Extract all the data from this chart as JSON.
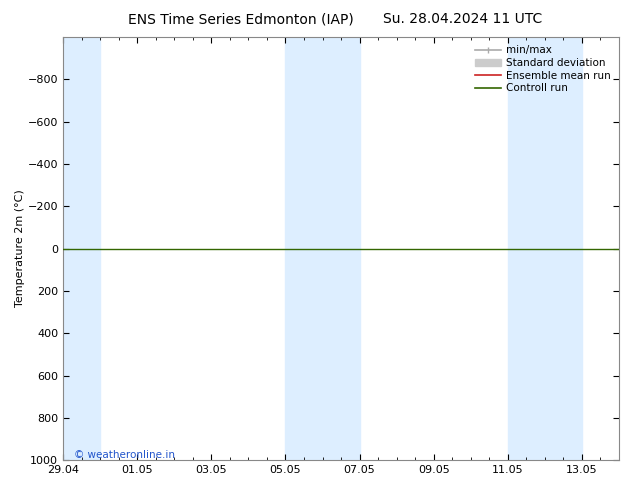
{
  "title": "ENS Time Series Edmonton (IAP)",
  "subtitle": "Su. 28.04.2024 11 UTC",
  "ylabel": "Temperature 2m (°C)",
  "ylim": [
    -1000,
    1000
  ],
  "yticks": [
    -800,
    -600,
    -400,
    -200,
    0,
    200,
    400,
    600,
    800,
    1000
  ],
  "xtick_labels": [
    "29.04",
    "01.05",
    "03.05",
    "05.05",
    "07.05",
    "09.05",
    "11.05",
    "13.05"
  ],
  "xtick_positions": [
    0,
    2,
    4,
    6,
    8,
    10,
    12,
    14
  ],
  "xlim": [
    0,
    15
  ],
  "shaded_bands": [
    [
      0,
      1
    ],
    [
      6,
      7
    ],
    [
      7,
      8
    ],
    [
      12,
      13
    ],
    [
      13,
      14
    ]
  ],
  "bg_color": "#ffffff",
  "shade_color": "#ddeeff",
  "green_line_y": 0,
  "copyright_text": "© weatheronline.in",
  "legend_items": [
    {
      "label": "min/max",
      "color": "#aaaaaa",
      "lw": 1.2,
      "ls": "-",
      "type": "line_with_caps"
    },
    {
      "label": "Standard deviation",
      "color": "#cccccc",
      "lw": 8,
      "ls": "-",
      "type": "patch"
    },
    {
      "label": "Ensemble mean run",
      "color": "#cc2222",
      "lw": 1.2,
      "ls": "-",
      "type": "line"
    },
    {
      "label": "Controll run",
      "color": "#336600",
      "lw": 1.2,
      "ls": "-",
      "type": "line"
    }
  ],
  "title_fontsize": 10,
  "axis_fontsize": 8,
  "tick_fontsize": 8,
  "legend_fontsize": 7.5
}
